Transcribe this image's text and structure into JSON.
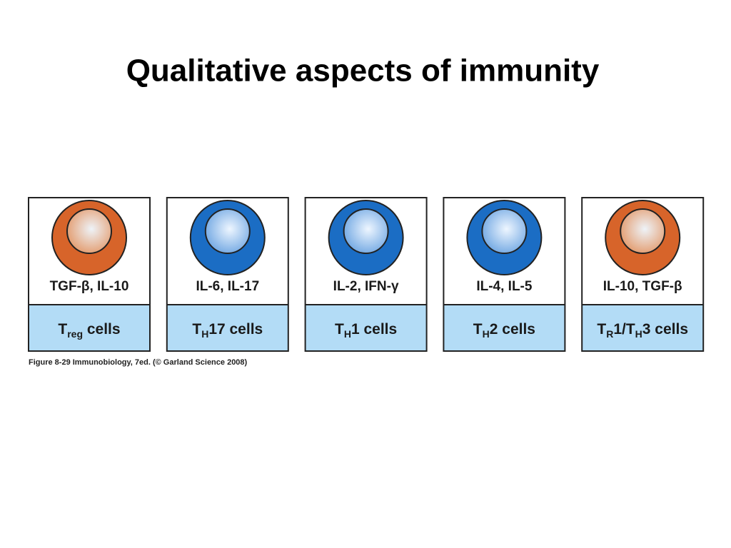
{
  "title": "Qualitative aspects of immunity",
  "cells": [
    {
      "color": "orange",
      "cytokines": "TGF-β, IL-10",
      "label": [
        {
          "text": "T"
        },
        {
          "text": "reg",
          "sub": true
        },
        {
          "text": " cells"
        }
      ]
    },
    {
      "color": "blue",
      "cytokines": "IL-6, IL-17",
      "label": [
        {
          "text": "T"
        },
        {
          "text": "H",
          "sub": true
        },
        {
          "text": "17 cells"
        }
      ]
    },
    {
      "color": "blue",
      "cytokines": "IL-2, IFN-γ",
      "label": [
        {
          "text": "T"
        },
        {
          "text": "H",
          "sub": true
        },
        {
          "text": "1 cells"
        }
      ]
    },
    {
      "color": "blue",
      "cytokines": "IL-4, IL-5",
      "label": [
        {
          "text": "T"
        },
        {
          "text": "H",
          "sub": true
        },
        {
          "text": "2 cells"
        }
      ]
    },
    {
      "color": "orange",
      "cytokines": "IL-10, TGF-β",
      "label": [
        {
          "text": "T"
        },
        {
          "text": "R",
          "sub": true
        },
        {
          "text": "1/T"
        },
        {
          "text": "H",
          "sub": true
        },
        {
          "text": "3 cells"
        }
      ]
    }
  ],
  "caption": "Figure 8-29 Immunobiology, 7ed. (© Garland Science 2008)"
}
